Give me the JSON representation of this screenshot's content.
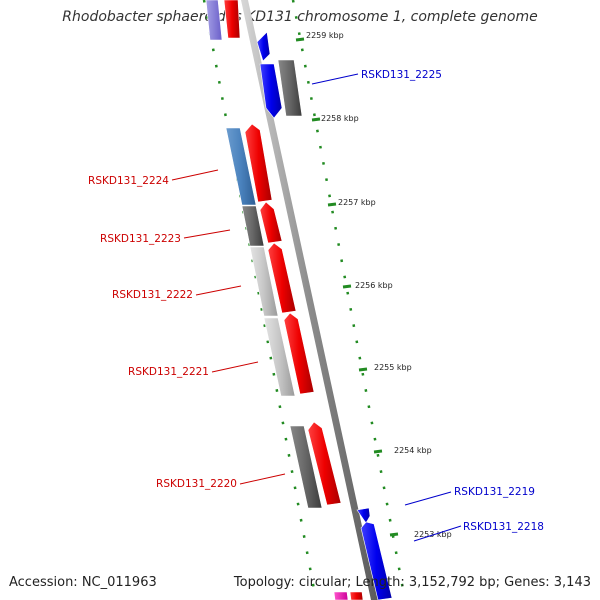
{
  "title": "Rhodobacter sphaeroides KD131 chromosome 1, complete genome",
  "footer": {
    "accession": "Accession: NC_011963",
    "summary": "Topology: circular; Length: 3,152,792 bp; Genes: 3,143"
  },
  "colors": {
    "forward_label": "#cc0000",
    "reverse_label": "#0000cc",
    "tick": "#228b22",
    "backbone": "#8c8c8c"
  },
  "kbp_ticks": [
    "2259 kbp",
    "2258 kbp",
    "2257 kbp",
    "2256 kbp",
    "2255 kbp",
    "2254 kbp",
    "2253 kbp"
  ],
  "genes": [
    {
      "label": "RSKD131_2225",
      "strand": "reverse"
    },
    {
      "label": "RSKD131_2224",
      "strand": "forward"
    },
    {
      "label": "RSKD131_2223",
      "strand": "forward"
    },
    {
      "label": "RSKD131_2222",
      "strand": "forward"
    },
    {
      "label": "RSKD131_2221",
      "strand": "forward"
    },
    {
      "label": "RSKD131_2220",
      "strand": "forward"
    },
    {
      "label": "RSKD131_2219",
      "strand": "reverse"
    },
    {
      "label": "RSKD131_2218",
      "strand": "reverse"
    }
  ]
}
